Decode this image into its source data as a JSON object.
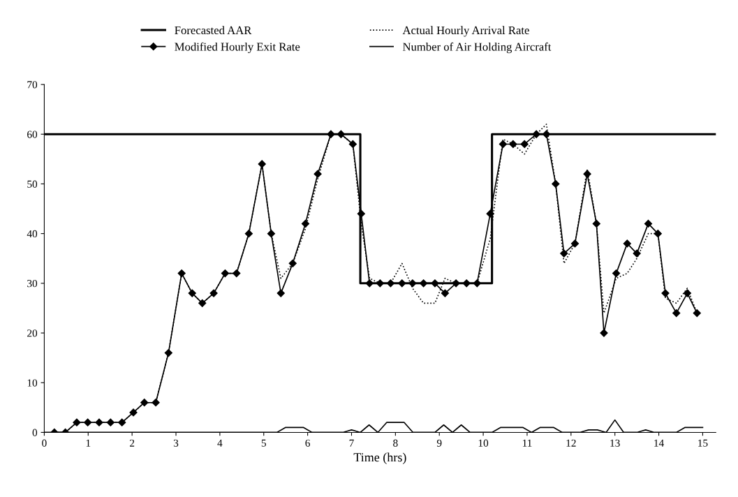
{
  "chart_data": {
    "type": "line",
    "xlabel": "Time (hrs)",
    "xlim": [
      0,
      15.3
    ],
    "ylim": [
      0,
      70
    ],
    "xticks": [
      0,
      1,
      2,
      3,
      4,
      5,
      6,
      7,
      8,
      9,
      10,
      11,
      12,
      13,
      14,
      15
    ],
    "yticks": [
      0,
      10,
      20,
      30,
      40,
      50,
      60,
      70
    ],
    "grid": false,
    "legend": "top",
    "series": [
      {
        "name": "Forecasted AAR",
        "color": "#000000",
        "line_style": "solid",
        "marker": "none",
        "x": [
          0,
          7.2,
          7.2,
          10.2,
          10.2,
          15.3
        ],
        "values": [
          60,
          60,
          30,
          30,
          60,
          60
        ]
      },
      {
        "name": "Modified Hourly Exit Rate",
        "color": "#000000",
        "line_style": "solid",
        "marker": "diamond",
        "x": [
          0.23,
          0.48,
          0.74,
          0.99,
          1.25,
          1.51,
          1.77,
          2.03,
          2.28,
          2.54,
          2.83,
          3.13,
          3.37,
          3.6,
          3.86,
          4.12,
          4.38,
          4.66,
          4.96,
          5.17,
          5.39,
          5.66,
          5.95,
          6.23,
          6.53,
          6.76,
          7.03,
          7.22,
          7.41,
          7.65,
          7.89,
          8.15,
          8.39,
          8.64,
          8.9,
          9.13,
          9.38,
          9.62,
          9.86,
          10.16,
          10.45,
          10.68,
          10.94,
          11.21,
          11.44,
          11.65,
          11.84,
          12.09,
          12.37,
          12.58,
          12.75,
          13.03,
          13.28,
          13.5,
          13.76,
          13.98,
          14.15,
          14.4,
          14.65,
          14.87
        ],
        "values": [
          0,
          0,
          2,
          2,
          2,
          2,
          2,
          4,
          6,
          6,
          16,
          32,
          28,
          26,
          28,
          32,
          32,
          40,
          54,
          40,
          28,
          34,
          42,
          52,
          60,
          60,
          58,
          44,
          30,
          30,
          30,
          30,
          30,
          30,
          30,
          28,
          30,
          30,
          30,
          44,
          58,
          58,
          58,
          60,
          60,
          50,
          36,
          38,
          52,
          42,
          20,
          32,
          38,
          36,
          42,
          40,
          28,
          24,
          28,
          24
        ]
      },
      {
        "name": "Actual Hourly Arrival Rate",
        "color": "#000000",
        "line_style": "dotted",
        "marker": "none",
        "x": [
          0.23,
          0.48,
          0.74,
          0.99,
          1.25,
          1.51,
          1.77,
          2.03,
          2.28,
          2.54,
          2.83,
          3.13,
          3.37,
          3.6,
          3.86,
          4.12,
          4.38,
          4.66,
          4.96,
          5.17,
          5.39,
          5.66,
          5.95,
          6.23,
          6.53,
          6.76,
          7.03,
          7.22,
          7.41,
          7.65,
          7.89,
          8.15,
          8.39,
          8.64,
          8.9,
          9.13,
          9.38,
          9.62,
          9.86,
          10.16,
          10.45,
          10.68,
          10.94,
          11.21,
          11.44,
          11.65,
          11.84,
          12.09,
          12.37,
          12.58,
          12.75,
          13.03,
          13.28,
          13.5,
          13.76,
          13.98,
          14.15,
          14.4,
          14.65,
          14.87
        ],
        "values": [
          0,
          0,
          2,
          2,
          2,
          2,
          2,
          4,
          6,
          6,
          16,
          32,
          28,
          26,
          28,
          32,
          32,
          40,
          54,
          40,
          31,
          34,
          41,
          51,
          60,
          60,
          58,
          42,
          31,
          30,
          30,
          34,
          29,
          26,
          26,
          31,
          30,
          30,
          30,
          39,
          59,
          58,
          56,
          60,
          62,
          50,
          34,
          38,
          53,
          42,
          24,
          31,
          32,
          35,
          40,
          40,
          27,
          26,
          29,
          24
        ]
      },
      {
        "name": "Number of Air Holding Aircraft",
        "color": "#000000",
        "line_style": "solid",
        "marker": "none",
        "x": [
          0,
          5.3,
          5.5,
          5.9,
          6.1,
          6.8,
          7.0,
          7.2,
          7.4,
          7.6,
          7.8,
          8.2,
          8.4,
          8.9,
          9.1,
          9.3,
          9.5,
          9.7,
          9.9,
          10.2,
          10.4,
          10.9,
          11.1,
          11.3,
          11.6,
          11.8,
          12.2,
          12.4,
          12.6,
          12.8,
          13.0,
          13.2,
          13.5,
          13.7,
          13.9,
          14.4,
          14.6,
          14.9,
          15.0
        ],
        "values": [
          0,
          0,
          1,
          1,
          0,
          0,
          0.5,
          0,
          1.5,
          0,
          2,
          2,
          0,
          0,
          1.5,
          0,
          1.5,
          0,
          0,
          0,
          1,
          1,
          0,
          1,
          1,
          0,
          0,
          0.5,
          0.5,
          0,
          2.5,
          0,
          0,
          0.5,
          0,
          0,
          1,
          1,
          1
        ]
      }
    ]
  }
}
